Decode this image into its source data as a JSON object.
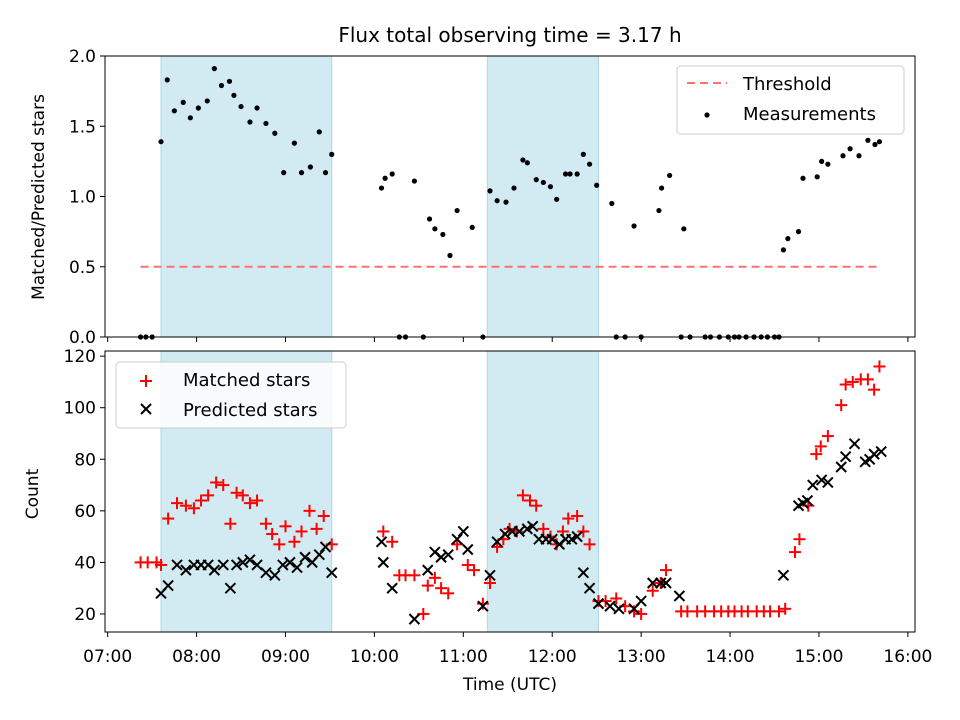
{
  "title": "Flux total observing time = 3.17 h",
  "colors": {
    "band": "#add8e6",
    "threshold": "#ff7070",
    "measurement": "#000000",
    "matched": "#ff0000",
    "predicted": "#000000"
  },
  "chart_data": [
    {
      "type": "scatter",
      "ylabel": "Matched/Predicted stars",
      "ylim": [
        0,
        2.0
      ],
      "yticks": [
        "0.0",
        "0.5",
        "1.0",
        "1.5",
        "2.0"
      ],
      "ytick_values": [
        0,
        0.5,
        1.0,
        1.5,
        2.0
      ],
      "legend": {
        "placement": "top-right",
        "entries": [
          "Threshold",
          "Measurements"
        ]
      },
      "threshold": {
        "name": "Threshold",
        "y": 0.5,
        "x_start": 7.37,
        "x_end": 15.68
      },
      "shaded_intervals": [
        [
          7.6,
          9.52
        ],
        [
          11.27,
          12.52
        ]
      ],
      "series": [
        {
          "name": "Measurements",
          "marker": "dot",
          "x": [
            7.37,
            7.43,
            7.5,
            7.6,
            7.67,
            7.75,
            7.85,
            7.93,
            8.02,
            8.12,
            8.2,
            8.28,
            8.37,
            8.42,
            8.5,
            8.6,
            8.68,
            8.78,
            8.88,
            8.98,
            9.1,
            9.18,
            9.28,
            9.38,
            9.45,
            9.52,
            10.08,
            10.12,
            10.2,
            10.28,
            10.35,
            10.45,
            10.55,
            10.62,
            10.68,
            10.77,
            10.85,
            10.93,
            11.1,
            11.22,
            11.3,
            11.38,
            11.48,
            11.57,
            11.67,
            11.72,
            11.82,
            11.9,
            11.98,
            12.05,
            12.15,
            12.2,
            12.28,
            12.35,
            12.42,
            12.5,
            12.67,
            12.72,
            12.82,
            12.92,
            13.0,
            13.2,
            13.23,
            13.32,
            13.45,
            13.48,
            13.55,
            13.72,
            13.78,
            13.88,
            13.98,
            14.05,
            14.1,
            14.18,
            14.27,
            14.35,
            14.42,
            14.5,
            14.55,
            14.6,
            14.65,
            14.77,
            14.82,
            14.98,
            15.03,
            15.1,
            15.27,
            15.35,
            15.45,
            15.55,
            15.63,
            15.68
          ],
          "y": [
            0,
            0,
            0,
            1.39,
            1.83,
            1.61,
            1.67,
            1.56,
            1.63,
            1.68,
            1.91,
            1.79,
            1.82,
            1.72,
            1.64,
            1.53,
            1.63,
            1.52,
            1.45,
            1.17,
            1.38,
            1.17,
            1.21,
            1.46,
            1.17,
            1.3,
            1.06,
            1.13,
            1.16,
            0,
            0,
            1.11,
            0,
            0.84,
            0.77,
            0.73,
            0.58,
            0.9,
            0.78,
            0,
            1.04,
            0.97,
            0.96,
            1.06,
            1.26,
            1.24,
            1.12,
            1.1,
            1.07,
            0.98,
            1.16,
            1.16,
            1.16,
            1.3,
            1.23,
            1.08,
            0.95,
            0,
            0,
            0.79,
            0,
            0.9,
            1.06,
            1.15,
            0,
            0.77,
            0,
            0,
            0,
            0,
            0,
            0,
            0,
            0,
            0,
            0,
            0,
            0,
            0,
            0.62,
            0.7,
            0.75,
            1.13,
            1.14,
            1.25,
            1.23,
            1.29,
            1.34,
            1.29,
            1.4,
            1.37,
            1.39
          ]
        }
      ]
    },
    {
      "type": "scatter",
      "xlabel": "Time (UTC)",
      "ylabel": "Count",
      "ylim": [
        13,
        122
      ],
      "xlim": [
        6.97,
        16.08
      ],
      "xticks": [
        "07:00",
        "08:00",
        "09:00",
        "10:00",
        "11:00",
        "12:00",
        "13:00",
        "14:00",
        "15:00",
        "16:00"
      ],
      "xtick_values": [
        7,
        8,
        9,
        10,
        11,
        12,
        13,
        14,
        15,
        16
      ],
      "yticks": [
        "20",
        "40",
        "60",
        "80",
        "100",
        "120"
      ],
      "ytick_values": [
        20,
        40,
        60,
        80,
        100,
        120
      ],
      "legend": {
        "placement": "top-left",
        "entries": [
          "Matched stars",
          "Predicted stars"
        ]
      },
      "shaded_intervals": [
        [
          7.6,
          9.52
        ],
        [
          11.27,
          12.52
        ]
      ],
      "series": [
        {
          "name": "Matched stars",
          "marker": "plus",
          "x": [
            7.37,
            7.45,
            7.55,
            7.6,
            7.68,
            7.78,
            7.88,
            7.97,
            8.05,
            8.13,
            8.22,
            8.3,
            8.38,
            8.45,
            8.52,
            8.6,
            8.68,
            8.78,
            8.85,
            8.93,
            9.0,
            9.1,
            9.18,
            9.27,
            9.35,
            9.43,
            9.52,
            10.1,
            10.2,
            10.28,
            10.35,
            10.45,
            10.55,
            10.6,
            10.68,
            10.75,
            10.83,
            10.93,
            11.05,
            11.12,
            11.22,
            11.3,
            11.38,
            11.45,
            11.52,
            11.6,
            11.67,
            11.75,
            11.82,
            11.9,
            11.98,
            12.05,
            12.12,
            12.18,
            12.28,
            12.35,
            12.42,
            12.52,
            12.6,
            12.72,
            12.82,
            12.92,
            13.0,
            13.13,
            13.22,
            13.28,
            13.45,
            13.52,
            13.63,
            13.72,
            13.82,
            13.9,
            13.98,
            14.05,
            14.13,
            14.2,
            14.3,
            14.38,
            14.45,
            14.55,
            14.62,
            14.73,
            14.78,
            14.88,
            14.97,
            15.02,
            15.1,
            15.25,
            15.3,
            15.38,
            15.47,
            15.55,
            15.62,
            15.68
          ],
          "y": [
            40,
            40,
            40,
            39,
            57,
            63,
            62,
            61,
            64,
            66,
            71,
            70,
            55,
            67,
            66,
            63,
            64,
            55,
            51,
            47,
            54,
            48,
            52,
            60,
            53,
            58,
            47,
            52,
            48,
            35,
            35,
            35,
            20,
            31,
            34,
            30,
            28,
            47,
            39,
            37,
            24,
            32,
            46,
            49,
            53,
            52,
            66,
            64,
            62,
            53,
            50,
            47,
            52,
            57,
            58,
            52,
            47,
            25,
            25,
            26,
            23,
            21,
            20,
            29,
            32,
            37,
            21,
            21,
            21,
            21,
            21,
            21,
            21,
            21,
            21,
            21,
            21,
            21,
            21,
            21,
            22,
            44,
            49,
            62,
            82,
            85,
            89,
            101,
            109,
            110,
            111,
            111,
            107,
            116
          ]
        },
        {
          "name": "Predicted stars",
          "marker": "x",
          "x": [
            7.6,
            7.68,
            7.78,
            7.88,
            7.97,
            8.05,
            8.13,
            8.2,
            8.3,
            8.38,
            8.45,
            8.52,
            8.6,
            8.68,
            8.78,
            8.88,
            8.97,
            9.05,
            9.13,
            9.22,
            9.3,
            9.38,
            9.45,
            9.52,
            10.08,
            10.1,
            10.2,
            10.45,
            10.6,
            10.68,
            10.75,
            10.83,
            10.93,
            11.0,
            11.05,
            11.22,
            11.3,
            11.38,
            11.47,
            11.55,
            11.63,
            11.72,
            11.78,
            11.85,
            11.93,
            12.0,
            12.08,
            12.15,
            12.22,
            12.28,
            12.35,
            12.42,
            12.52,
            12.65,
            12.75,
            12.92,
            13.0,
            13.13,
            13.22,
            13.28,
            13.43,
            14.6,
            14.77,
            14.82,
            14.87,
            14.93,
            15.03,
            15.1,
            15.25,
            15.3,
            15.4,
            15.52,
            15.57,
            15.62,
            15.7
          ],
          "y": [
            28,
            31,
            39,
            37,
            39,
            39,
            39,
            37,
            39,
            30,
            39,
            40,
            41,
            39,
            36,
            35,
            39,
            40,
            38,
            42,
            40,
            43,
            46,
            36,
            48,
            40,
            30,
            18,
            37,
            44,
            42,
            43,
            49,
            52,
            45,
            23,
            35,
            48,
            51,
            52,
            52,
            53,
            54,
            49,
            49,
            49,
            47,
            49,
            49,
            50,
            36,
            30,
            24,
            23,
            22,
            22,
            25,
            32,
            32,
            32,
            27,
            35,
            62,
            63,
            64,
            70,
            72,
            71,
            77,
            81,
            86,
            79,
            80,
            82,
            83
          ]
        }
      ]
    }
  ]
}
